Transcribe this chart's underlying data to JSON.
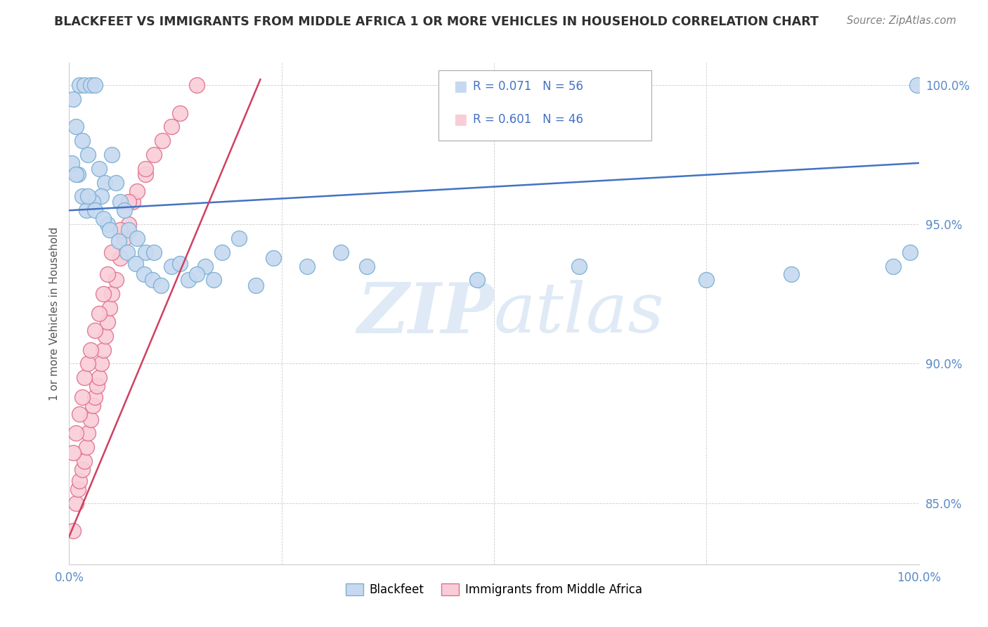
{
  "title": "BLACKFEET VS IMMIGRANTS FROM MIDDLE AFRICA 1 OR MORE VEHICLES IN HOUSEHOLD CORRELATION CHART",
  "source": "Source: ZipAtlas.com",
  "ylabel": "1 or more Vehicles in Household",
  "xlim": [
    0.0,
    1.0
  ],
  "ylim": [
    0.828,
    1.008
  ],
  "yticks": [
    0.85,
    0.9,
    0.95,
    1.0
  ],
  "ytick_labels": [
    "85.0%",
    "90.0%",
    "95.0%",
    "100.0%"
  ],
  "xticks": [
    0.0,
    0.25,
    0.5,
    0.75,
    1.0
  ],
  "xtick_labels": [
    "0.0%",
    "",
    "",
    "",
    "100.0%"
  ],
  "blue_R": 0.071,
  "blue_N": 56,
  "pink_R": 0.601,
  "pink_N": 46,
  "blue_color": "#c6d9f0",
  "pink_color": "#f9cdd8",
  "blue_edge": "#7bafd4",
  "pink_edge": "#e07090",
  "blue_line_color": "#4472c4",
  "pink_line_color": "#d04060",
  "legend_text_color": "#4472c4",
  "title_color": "#303030",
  "source_color": "#808080",
  "background_color": "#ffffff",
  "watermark_color": "#dce8f5",
  "blue_line_start_y": 0.955,
  "blue_line_end_y": 0.972,
  "pink_line_start_x": 0.0,
  "pink_line_start_y": 0.838,
  "pink_line_end_x": 0.225,
  "pink_line_end_y": 1.002,
  "blue_x": [
    0.005,
    0.012,
    0.018,
    0.025,
    0.03,
    0.008,
    0.015,
    0.022,
    0.035,
    0.042,
    0.05,
    0.038,
    0.028,
    0.02,
    0.045,
    0.055,
    0.06,
    0.01,
    0.065,
    0.07,
    0.08,
    0.09,
    0.1,
    0.12,
    0.14,
    0.16,
    0.18,
    0.2,
    0.24,
    0.28,
    0.32,
    0.003,
    0.008,
    0.015,
    0.022,
    0.03,
    0.04,
    0.048,
    0.058,
    0.068,
    0.078,
    0.088,
    0.098,
    0.108,
    0.13,
    0.15,
    0.17,
    0.22,
    0.35,
    0.48,
    0.6,
    0.75,
    0.85,
    0.97,
    0.99,
    0.998
  ],
  "blue_y": [
    0.995,
    1.0,
    1.0,
    1.0,
    1.0,
    0.985,
    0.98,
    0.975,
    0.97,
    0.965,
    0.975,
    0.96,
    0.958,
    0.955,
    0.95,
    0.965,
    0.958,
    0.968,
    0.955,
    0.948,
    0.945,
    0.94,
    0.94,
    0.935,
    0.93,
    0.935,
    0.94,
    0.945,
    0.938,
    0.935,
    0.94,
    0.972,
    0.968,
    0.96,
    0.96,
    0.955,
    0.952,
    0.948,
    0.944,
    0.94,
    0.936,
    0.932,
    0.93,
    0.928,
    0.936,
    0.932,
    0.93,
    0.928,
    0.935,
    0.93,
    0.935,
    0.93,
    0.932,
    0.935,
    0.94,
    1.0
  ],
  "pink_x": [
    0.005,
    0.008,
    0.01,
    0.012,
    0.015,
    0.018,
    0.02,
    0.022,
    0.025,
    0.028,
    0.03,
    0.033,
    0.035,
    0.038,
    0.04,
    0.043,
    0.045,
    0.048,
    0.05,
    0.055,
    0.06,
    0.065,
    0.07,
    0.075,
    0.08,
    0.09,
    0.1,
    0.11,
    0.12,
    0.13,
    0.005,
    0.008,
    0.012,
    0.015,
    0.018,
    0.022,
    0.025,
    0.03,
    0.035,
    0.04,
    0.045,
    0.05,
    0.06,
    0.07,
    0.09,
    0.15
  ],
  "pink_y": [
    0.84,
    0.85,
    0.855,
    0.858,
    0.862,
    0.865,
    0.87,
    0.875,
    0.88,
    0.885,
    0.888,
    0.892,
    0.895,
    0.9,
    0.905,
    0.91,
    0.915,
    0.92,
    0.925,
    0.93,
    0.938,
    0.945,
    0.95,
    0.958,
    0.962,
    0.968,
    0.975,
    0.98,
    0.985,
    0.99,
    0.868,
    0.875,
    0.882,
    0.888,
    0.895,
    0.9,
    0.905,
    0.912,
    0.918,
    0.925,
    0.932,
    0.94,
    0.948,
    0.958,
    0.97,
    1.0
  ]
}
